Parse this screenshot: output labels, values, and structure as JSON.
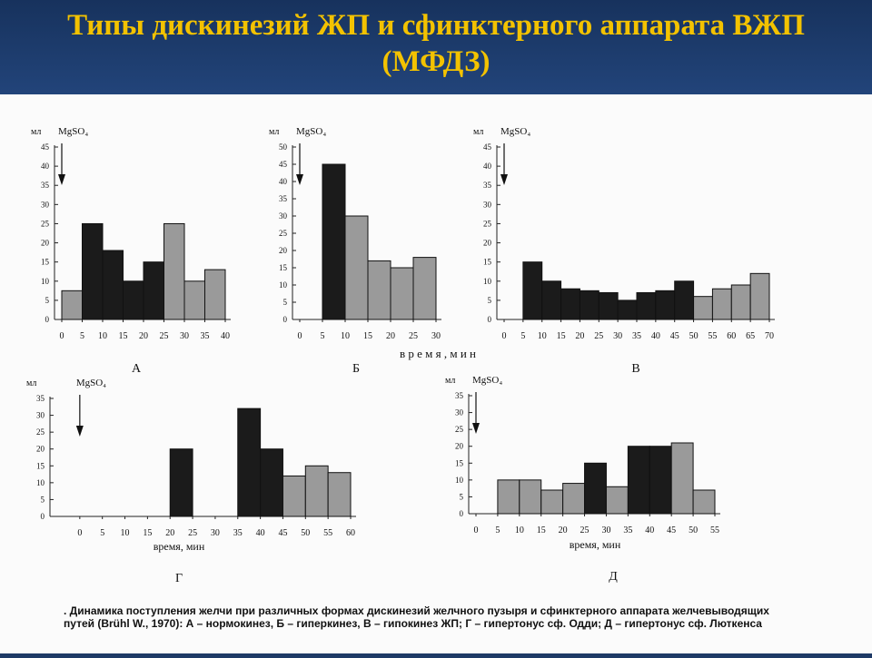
{
  "slide": {
    "title_line1": "Типы дискинезий ЖП и сфинктерного аппарата ВЖП",
    "title_line2": "(МФДЗ)",
    "time_axis_label": "в р е м я ,   м и н",
    "caption_line1": ". Динамика поступления желчи при различных формах дискинезий желчного пузыря и сфинктерного аппарата желчевыводящих",
    "caption_line2": "путей (Brühl W., 1970): А – нормокинез, Б – гиперкинез, В – гипокинез ЖП; Г – гипертонус сф. Одди; Д – гипертонус сф. Люткенса",
    "colors": {
      "title": "#f3c200",
      "header_bg": "#1e3a66",
      "bar_dark": "#1b1b1b",
      "bar_light": "#9a9a9a"
    }
  },
  "chart_data": [
    {
      "type": "bar",
      "panel_label": "А",
      "ylabel": "мл",
      "annotation": "MgSO₄",
      "annotation_x": 0,
      "ylim": [
        0,
        45
      ],
      "yticks": [
        0,
        5,
        10,
        15,
        20,
        25,
        30,
        35,
        40,
        45
      ],
      "xlim": [
        0,
        40
      ],
      "xticks": [
        0,
        5,
        10,
        15,
        20,
        25,
        30,
        35,
        40
      ],
      "xlabel": "",
      "bars": [
        {
          "x0": 0,
          "x1": 5,
          "value": 7.5,
          "shade": "light"
        },
        {
          "x0": 5,
          "x1": 10,
          "value": 25,
          "shade": "dark"
        },
        {
          "x0": 10,
          "x1": 15,
          "value": 18,
          "shade": "dark"
        },
        {
          "x0": 15,
          "x1": 20,
          "value": 10,
          "shade": "dark"
        },
        {
          "x0": 20,
          "x1": 25,
          "value": 15,
          "shade": "dark"
        },
        {
          "x0": 25,
          "x1": 30,
          "value": 25,
          "shade": "light"
        },
        {
          "x0": 30,
          "x1": 35,
          "value": 10,
          "shade": "light"
        },
        {
          "x0": 35,
          "x1": 40,
          "value": 13,
          "shade": "light"
        }
      ]
    },
    {
      "type": "bar",
      "panel_label": "Б",
      "ylabel": "мл",
      "annotation": "MgSO₄",
      "annotation_x": 0,
      "ylim": [
        0,
        50
      ],
      "yticks": [
        0,
        5,
        10,
        15,
        20,
        25,
        30,
        35,
        40,
        45,
        50
      ],
      "xlim": [
        0,
        30
      ],
      "xticks": [
        0,
        5,
        10,
        15,
        20,
        25,
        30
      ],
      "xlabel": "",
      "bars": [
        {
          "x0": 5,
          "x1": 10,
          "value": 45,
          "shade": "dark"
        },
        {
          "x0": 10,
          "x1": 15,
          "value": 30,
          "shade": "light"
        },
        {
          "x0": 15,
          "x1": 20,
          "value": 17,
          "shade": "light"
        },
        {
          "x0": 20,
          "x1": 25,
          "value": 15,
          "shade": "light"
        },
        {
          "x0": 25,
          "x1": 30,
          "value": 18,
          "shade": "light"
        }
      ]
    },
    {
      "type": "bar",
      "panel_label": "В",
      "ylabel": "мл",
      "annotation": "MgSO₄",
      "annotation_x": 0,
      "ylim": [
        0,
        45
      ],
      "yticks": [
        0,
        5,
        10,
        15,
        20,
        25,
        30,
        35,
        40,
        45
      ],
      "xlim": [
        0,
        70
      ],
      "xticks": [
        0,
        5,
        10,
        15,
        20,
        25,
        30,
        35,
        40,
        45,
        50,
        55,
        60,
        65,
        70
      ],
      "xlabel": "",
      "bars": [
        {
          "x0": 5,
          "x1": 10,
          "value": 15,
          "shade": "dark"
        },
        {
          "x0": 10,
          "x1": 15,
          "value": 10,
          "shade": "dark"
        },
        {
          "x0": 15,
          "x1": 20,
          "value": 8,
          "shade": "dark"
        },
        {
          "x0": 20,
          "x1": 25,
          "value": 7.5,
          "shade": "dark"
        },
        {
          "x0": 25,
          "x1": 30,
          "value": 7,
          "shade": "dark"
        },
        {
          "x0": 30,
          "x1": 35,
          "value": 5,
          "shade": "dark"
        },
        {
          "x0": 35,
          "x1": 40,
          "value": 7,
          "shade": "dark"
        },
        {
          "x0": 40,
          "x1": 45,
          "value": 7.5,
          "shade": "dark"
        },
        {
          "x0": 45,
          "x1": 50,
          "value": 10,
          "shade": "dark"
        },
        {
          "x0": 50,
          "x1": 55,
          "value": 6,
          "shade": "light"
        },
        {
          "x0": 55,
          "x1": 60,
          "value": 8,
          "shade": "light"
        },
        {
          "x0": 60,
          "x1": 65,
          "value": 9,
          "shade": "light"
        },
        {
          "x0": 65,
          "x1": 70,
          "value": 12,
          "shade": "light"
        }
      ]
    },
    {
      "type": "bar",
      "panel_label": "Г",
      "ylabel": "мл",
      "annotation": "MgSO₄",
      "annotation_x": 0,
      "ylim": [
        0,
        35
      ],
      "yticks": [
        0,
        5,
        10,
        15,
        20,
        25,
        30,
        35
      ],
      "xlim": [
        -5,
        60
      ],
      "xticks": [
        0,
        5,
        10,
        15,
        20,
        25,
        30,
        35,
        40,
        45,
        50,
        55,
        60
      ],
      "xlabel": "время, мин",
      "bars": [
        {
          "x0": 20,
          "x1": 25,
          "value": 20,
          "shade": "dark"
        },
        {
          "x0": 35,
          "x1": 40,
          "value": 32,
          "shade": "dark"
        },
        {
          "x0": 40,
          "x1": 45,
          "value": 20,
          "shade": "dark"
        },
        {
          "x0": 45,
          "x1": 50,
          "value": 12,
          "shade": "light"
        },
        {
          "x0": 50,
          "x1": 55,
          "value": 15,
          "shade": "light"
        },
        {
          "x0": 55,
          "x1": 60,
          "value": 13,
          "shade": "light"
        }
      ]
    },
    {
      "type": "bar",
      "panel_label": "Д",
      "ylabel": "мл",
      "annotation": "MgSO₄",
      "annotation_x": 0,
      "ylim": [
        0,
        35
      ],
      "yticks": [
        0,
        5,
        10,
        15,
        20,
        25,
        30,
        35
      ],
      "xlim": [
        0,
        55
      ],
      "xticks": [
        0,
        5,
        10,
        15,
        20,
        25,
        30,
        35,
        40,
        45,
        50,
        55
      ],
      "xlabel": "время, мин",
      "bars": [
        {
          "x0": 5,
          "x1": 10,
          "value": 10,
          "shade": "light"
        },
        {
          "x0": 10,
          "x1": 15,
          "value": 10,
          "shade": "light"
        },
        {
          "x0": 15,
          "x1": 20,
          "value": 7,
          "shade": "light"
        },
        {
          "x0": 20,
          "x1": 25,
          "value": 9,
          "shade": "light"
        },
        {
          "x0": 25,
          "x1": 30,
          "value": 15,
          "shade": "dark"
        },
        {
          "x0": 30,
          "x1": 35,
          "value": 8,
          "shade": "light"
        },
        {
          "x0": 35,
          "x1": 40,
          "value": 20,
          "shade": "dark"
        },
        {
          "x0": 40,
          "x1": 45,
          "value": 20,
          "shade": "dark"
        },
        {
          "x0": 45,
          "x1": 50,
          "value": 21,
          "shade": "light"
        },
        {
          "x0": 50,
          "x1": 55,
          "value": 7,
          "shade": "light"
        }
      ]
    }
  ]
}
